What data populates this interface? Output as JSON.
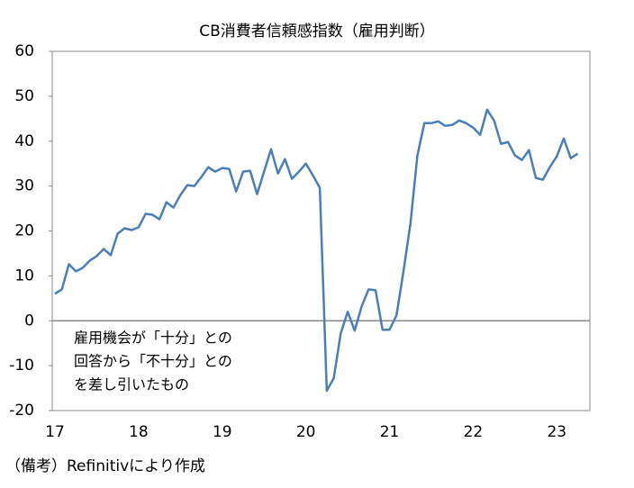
{
  "chart_data": {
    "type": "line",
    "title": "CB消費者信頼感指数（雇用判断）",
    "annotation": [
      "雇用機会が「十分」との",
      "回答から「不十分」との",
      "を差し引いたもの"
    ],
    "note": "（備考）Refinitivにより作成",
    "categories": [
      "17",
      null,
      null,
      null,
      null,
      null,
      null,
      null,
      null,
      null,
      null,
      null,
      "18",
      null,
      null,
      null,
      null,
      null,
      null,
      null,
      null,
      null,
      null,
      null,
      "19",
      null,
      null,
      null,
      null,
      null,
      null,
      null,
      null,
      null,
      null,
      null,
      "20",
      null,
      null,
      null,
      null,
      null,
      null,
      null,
      null,
      null,
      null,
      null,
      "21",
      null,
      null,
      null,
      null,
      null,
      null,
      null,
      null,
      null,
      null,
      null,
      "22",
      null,
      null,
      null,
      null,
      null,
      null,
      null,
      null,
      null,
      null,
      null,
      "23",
      null,
      null,
      null
    ],
    "series": [
      {
        "name": "雇用判断",
        "color": "#4a7ebb",
        "values": [
          6.0,
          7.0,
          12.6,
          11.0,
          11.8,
          13.4,
          14.4,
          16.0,
          14.6,
          19.4,
          20.6,
          20.2,
          20.8,
          23.8,
          23.6,
          22.6,
          26.4,
          25.2,
          28.0,
          30.2,
          30.0,
          32.0,
          34.2,
          33.2,
          34.0,
          33.8,
          28.8,
          33.2,
          33.4,
          28.2,
          33.2,
          38.2,
          32.8,
          36.0,
          31.6,
          33.2,
          35.0,
          32.4,
          29.6,
          -15.6,
          -12.8,
          -2.8,
          2.0,
          -2.2,
          3.2,
          7.0,
          6.8,
          -2.0,
          -2.0,
          1.2,
          11.0,
          21.6,
          36.8,
          44.0,
          44.0,
          44.4,
          43.4,
          43.6,
          44.6,
          44.0,
          43.0,
          41.4,
          47.0,
          44.6,
          39.4,
          39.8,
          36.8,
          35.8,
          38.0,
          31.8,
          31.4,
          34.2,
          36.6,
          40.6,
          36.2,
          37.2
        ]
      }
    ],
    "ylim": [
      -20,
      60
    ],
    "yticks": [
      -20,
      -10,
      0,
      10,
      20,
      30,
      40,
      50,
      60
    ],
    "grid": false
  }
}
